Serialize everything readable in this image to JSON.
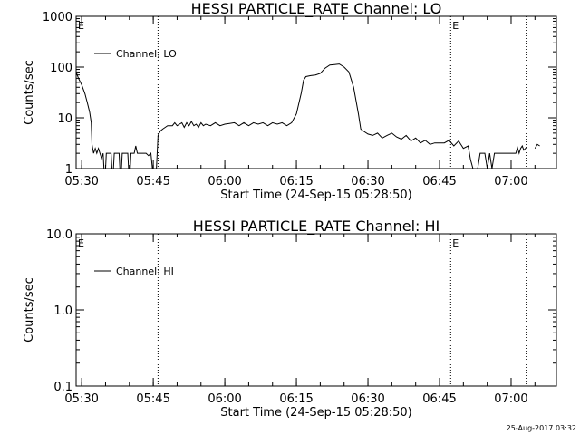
{
  "footer": {
    "timestamp": "25-Aug-2017 03:32"
  },
  "chart_data": [
    {
      "type": "line",
      "title": "HESSI PARTICLE_RATE Channel: LO",
      "xlabel": "Start Time (24-Sep-15 05:28:50)",
      "ylabel": "Counts/sec",
      "xlim": [
        "05:28:50",
        "07:09:30"
      ],
      "ylim": [
        1,
        1000
      ],
      "yscale": "log",
      "xticks": [
        "05:30",
        "05:45",
        "06:00",
        "06:15",
        "06:30",
        "06:45",
        "07:00"
      ],
      "yticks": [
        "1",
        "10",
        "100",
        "1000"
      ],
      "legend": {
        "position": "top-left",
        "entries": [
          "Channel: LO"
        ]
      },
      "markers": [
        {
          "time": "05:46:00",
          "label": ""
        },
        {
          "time": "06:47:20",
          "label": "E"
        },
        {
          "time": "07:03:10",
          "label": ""
        },
        {
          "time": "05:28:50",
          "label": "E"
        }
      ],
      "series": [
        {
          "name": "Channel: LO",
          "segments": [
            [
              [
                "05:28:50",
                80
              ],
              [
                "05:29:20",
                60
              ],
              [
                "05:30:00",
                45
              ],
              [
                "05:30:40",
                30
              ],
              [
                "05:31:10",
                20
              ],
              [
                "05:31:40",
                13
              ],
              [
                "05:32:00",
                8
              ],
              [
                "05:32:10",
                3
              ],
              [
                "05:32:30",
                2
              ],
              [
                "05:32:50",
                2.5
              ],
              [
                "05:33:10",
                2
              ],
              [
                "05:33:30",
                2.5
              ],
              [
                "05:33:50",
                2
              ],
              [
                "05:34:10",
                1.6
              ],
              [
                "05:34:30",
                2
              ],
              [
                "05:34:40",
                1
              ],
              [
                "05:35:00",
                1
              ],
              [
                "05:35:10",
                2
              ],
              [
                "05:36:10",
                2
              ],
              [
                "05:36:20",
                1
              ],
              [
                "05:36:40",
                1
              ],
              [
                "05:36:50",
                2
              ],
              [
                "05:37:50",
                2
              ],
              [
                "05:38:00",
                1
              ],
              [
                "05:38:20",
                1
              ],
              [
                "05:38:30",
                2
              ],
              [
                "05:39:40",
                2
              ],
              [
                "05:39:50",
                1
              ],
              [
                "05:40:10",
                1
              ],
              [
                "05:40:20",
                2
              ],
              [
                "05:41:00",
                2
              ],
              [
                "05:41:20",
                2.8
              ],
              [
                "05:41:40",
                2
              ],
              [
                "05:43:00",
                2
              ],
              [
                "05:43:30",
                2
              ],
              [
                "05:44:00",
                1.8
              ],
              [
                "05:44:30",
                2
              ],
              [
                "05:44:50",
                1
              ],
              [
                "05:45:40",
                1
              ],
              [
                "05:46:00",
                4.5
              ],
              [
                "05:46:30",
                5.5
              ],
              [
                "05:47:00",
                6
              ],
              [
                "05:47:30",
                6.5
              ],
              [
                "05:48:00",
                7
              ],
              [
                "05:49:00",
                7
              ],
              [
                "05:49:30",
                8
              ],
              [
                "05:50:00",
                7
              ],
              [
                "05:50:30",
                7.5
              ],
              [
                "05:51:00",
                8
              ],
              [
                "05:51:30",
                6.5
              ],
              [
                "05:52:00",
                8
              ],
              [
                "05:52:30",
                7
              ],
              [
                "05:53:00",
                8.5
              ],
              [
                "05:53:30",
                7
              ],
              [
                "05:54:00",
                7.5
              ],
              [
                "05:54:30",
                6.5
              ],
              [
                "05:55:00",
                8
              ],
              [
                "05:55:30",
                7
              ],
              [
                "05:56:00",
                7.5
              ],
              [
                "05:57:00",
                7
              ],
              [
                "05:58:00",
                8
              ],
              [
                "05:59:00",
                7
              ],
              [
                "06:00:00",
                7.5
              ],
              [
                "06:02:00",
                8
              ],
              [
                "06:03:00",
                7
              ],
              [
                "06:04:00",
                8
              ],
              [
                "06:05:00",
                7
              ],
              [
                "06:06:00",
                8
              ],
              [
                "06:07:00",
                7.5
              ],
              [
                "06:08:00",
                8
              ],
              [
                "06:09:00",
                7
              ],
              [
                "06:10:00",
                8
              ],
              [
                "06:11:00",
                7.5
              ],
              [
                "06:12:00",
                8
              ],
              [
                "06:13:00",
                7
              ],
              [
                "06:14:00",
                8
              ],
              [
                "06:15:00",
                12
              ],
              [
                "06:16:00",
                30
              ],
              [
                "06:16:30",
                55
              ],
              [
                "06:17:00",
                65
              ],
              [
                "06:18:00",
                68
              ],
              [
                "06:19:00",
                70
              ],
              [
                "06:20:00",
                75
              ],
              [
                "06:21:00",
                95
              ],
              [
                "06:22:00",
                110
              ],
              [
                "06:23:00",
                112
              ],
              [
                "06:24:00",
                115
              ],
              [
                "06:25:00",
                100
              ],
              [
                "06:26:00",
                80
              ],
              [
                "06:27:00",
                40
              ],
              [
                "06:28:00",
                12
              ],
              [
                "06:28:30",
                6
              ],
              [
                "06:29:00",
                5.5
              ],
              [
                "06:30:00",
                4.8
              ],
              [
                "06:31:00",
                4.5
              ],
              [
                "06:32:00",
                5
              ],
              [
                "06:33:00",
                4
              ],
              [
                "06:34:00",
                4.5
              ],
              [
                "06:35:00",
                5
              ],
              [
                "06:36:00",
                4.2
              ],
              [
                "06:37:00",
                3.8
              ],
              [
                "06:38:00",
                4.5
              ],
              [
                "06:39:00",
                3.5
              ],
              [
                "06:40:00",
                4
              ],
              [
                "06:41:00",
                3.2
              ],
              [
                "06:42:00",
                3.6
              ],
              [
                "06:43:00",
                3
              ],
              [
                "06:44:00",
                3.2
              ],
              [
                "06:45:00",
                3.2
              ],
              [
                "06:46:00",
                3.2
              ],
              [
                "06:47:00",
                3.6
              ],
              [
                "06:48:00",
                2.8
              ],
              [
                "06:49:00",
                3.5
              ],
              [
                "06:50:00",
                2.5
              ],
              [
                "06:51:00",
                2.8
              ],
              [
                "06:51:30",
                1.5
              ],
              [
                "06:52:00",
                1
              ],
              [
                "06:53:00",
                1
              ],
              [
                "06:53:30",
                2
              ],
              [
                "06:54:30",
                2
              ],
              [
                "06:55:00",
                1
              ],
              [
                "06:55:30",
                2
              ],
              [
                "06:56:00",
                1
              ],
              [
                "06:56:30",
                2
              ],
              [
                "07:00:00",
                2
              ],
              [
                "07:01:00",
                2
              ],
              [
                "07:01:20",
                2.6
              ],
              [
                "07:01:40",
                2
              ],
              [
                "07:02:00",
                2.5
              ],
              [
                "07:02:20",
                2.8
              ],
              [
                "07:02:40",
                2.3
              ],
              [
                "07:03:10",
                2.6
              ]
            ],
            [
              [
                "07:05:00",
                2.5
              ],
              [
                "07:05:30",
                3
              ],
              [
                "07:06:00",
                2.8
              ]
            ]
          ]
        }
      ]
    },
    {
      "type": "line",
      "title": "HESSI PARTICLE_RATE Channel: HI",
      "xlabel": "Start Time (24-Sep-15 05:28:50)",
      "ylabel": "Counts/sec",
      "xlim": [
        "05:28:50",
        "07:09:30"
      ],
      "ylim": [
        0.1,
        10
      ],
      "yscale": "log",
      "xticks": [
        "05:30",
        "05:45",
        "06:00",
        "06:15",
        "06:30",
        "06:45",
        "07:00"
      ],
      "yticks": [
        "0.1",
        "1.0",
        "10.0"
      ],
      "legend": {
        "position": "top-left",
        "entries": [
          "Channel: HI"
        ]
      },
      "markers": [
        {
          "time": "05:46:00",
          "label": ""
        },
        {
          "time": "06:47:20",
          "label": "E"
        },
        {
          "time": "07:03:10",
          "label": ""
        },
        {
          "time": "05:28:50",
          "label": "E"
        }
      ],
      "series": [
        {
          "name": "Channel: HI",
          "segments": []
        }
      ]
    }
  ]
}
